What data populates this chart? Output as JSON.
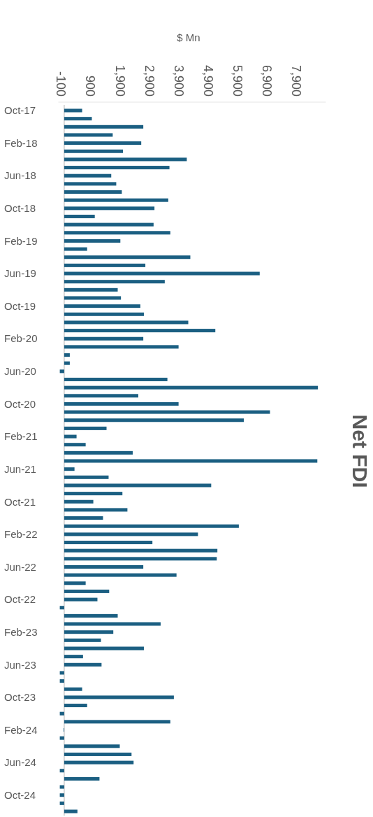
{
  "chart_data": {
    "type": "bar",
    "orientation": "horizontal",
    "title": "Net FDI",
    "xlabel": "$ Mn",
    "categories": [
      "Oct-17",
      null,
      null,
      null,
      "Feb-18",
      null,
      null,
      null,
      "Jun-18",
      null,
      null,
      null,
      "Oct-18",
      null,
      null,
      null,
      "Feb-19",
      null,
      null,
      null,
      "Jun-19",
      null,
      null,
      null,
      "Oct-19",
      null,
      null,
      null,
      "Feb-20",
      null,
      null,
      null,
      "Jun-20",
      null,
      null,
      null,
      "Oct-20",
      null,
      null,
      null,
      "Feb-21",
      null,
      null,
      null,
      "Jun-21",
      null,
      null,
      null,
      "Oct-21",
      null,
      null,
      null,
      "Feb-22",
      null,
      null,
      null,
      "Jun-22",
      null,
      null,
      null,
      "Oct-22",
      null,
      null,
      null,
      "Feb-23",
      null,
      null,
      null,
      "Jun-23",
      null,
      null,
      null,
      "Oct-23",
      null,
      null,
      null,
      "Feb-24",
      null,
      null,
      null,
      "Jun-24",
      null,
      null,
      null,
      "Oct-24",
      null,
      null
    ],
    "values": [
      610,
      940,
      2690,
      1650,
      2620,
      2000,
      4170,
      3580,
      1600,
      1770,
      1960,
      3540,
      3070,
      1040,
      3040,
      3610,
      1910,
      780,
      4290,
      2760,
      6650,
      3420,
      1820,
      1930,
      2590,
      2710,
      4220,
      5140,
      2690,
      3890,
      190,
      190,
      -150,
      3510,
      8630,
      2520,
      3890,
      7000,
      6110,
      1440,
      420,
      730,
      2330,
      8610,
      350,
      1510,
      5000,
      1980,
      990,
      2150,
      1320,
      5940,
      4550,
      3000,
      5210,
      5190,
      2690,
      3820,
      730,
      1530,
      1130,
      -150,
      1820,
      3280,
      1670,
      1250,
      2710,
      640,
      1270,
      -150,
      -150,
      610,
      3730,
      780,
      -150,
      3610,
      -20,
      -150,
      1890,
      2290,
      2360,
      -150,
      1200,
      -150,
      -150,
      -150,
      450
    ],
    "color": "#1b5f82",
    "xlim": [
      -200,
      8900
    ],
    "xticks": [
      -100,
      900,
      {
        "value": 1900,
        "label": "1,900"
      },
      {
        "value": 2900,
        "label": "2,900"
      },
      {
        "value": 3900,
        "label": "3,900"
      },
      {
        "value": 4900,
        "label": "4,900"
      },
      {
        "value": 5900,
        "label": "5,900"
      },
      {
        "value": 6900,
        "label": "6,900"
      },
      {
        "value": 7900,
        "label": "7,900"
      }
    ]
  }
}
